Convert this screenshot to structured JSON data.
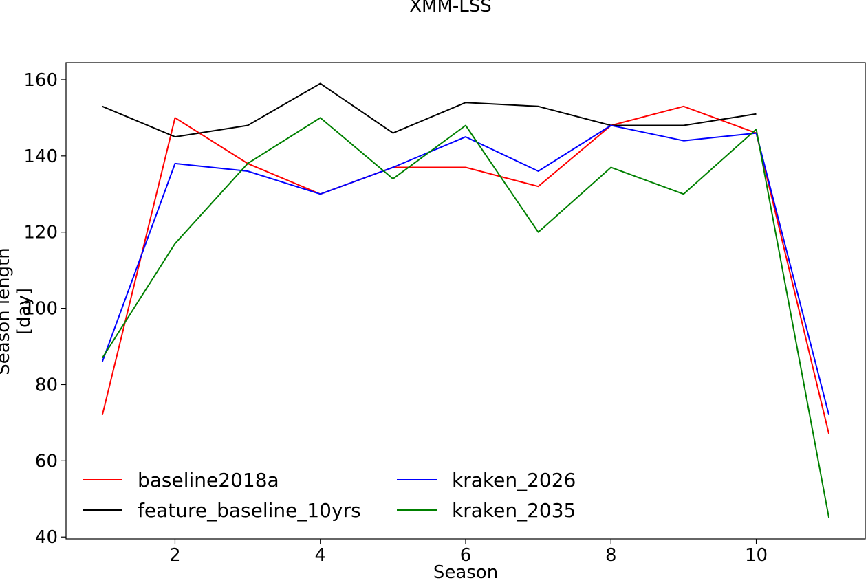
{
  "chart_data": {
    "type": "line",
    "title": "XMM-LSS",
    "xlabel": "Season",
    "ylabel": "Season length [day]",
    "xlim": [
      0.5,
      11.5
    ],
    "ylim": [
      39.5,
      164.5
    ],
    "xticks": [
      2,
      4,
      6,
      8,
      10
    ],
    "yticks": [
      40,
      60,
      80,
      100,
      120,
      140,
      160
    ],
    "grid": false,
    "legend_position": "lower-left",
    "series": [
      {
        "name": "baseline2018a",
        "color": "#ff0000",
        "x": [
          1,
          2,
          3,
          4,
          5,
          6,
          7,
          8,
          9,
          10,
          11
        ],
        "y": [
          72,
          150,
          138,
          130,
          137,
          137,
          132,
          148,
          153,
          146,
          67
        ]
      },
      {
        "name": "feature_baseline_10yrs",
        "color": "#000000",
        "x": [
          1,
          2,
          3,
          4,
          5,
          6,
          7,
          8,
          9,
          10
        ],
        "y": [
          153,
          145,
          148,
          159,
          146,
          154,
          153,
          148,
          148,
          151
        ]
      },
      {
        "name": "kraken_2026",
        "color": "#0000ff",
        "x": [
          1,
          2,
          3,
          4,
          5,
          6,
          7,
          8,
          9,
          10,
          11
        ],
        "y": [
          86,
          138,
          136,
          130,
          137,
          145,
          136,
          148,
          144,
          146,
          72
        ]
      },
      {
        "name": "kraken_2035",
        "color": "#008000",
        "x": [
          1,
          2,
          3,
          4,
          5,
          6,
          7,
          8,
          9,
          10,
          11
        ],
        "y": [
          87,
          117,
          138,
          150,
          134,
          148,
          120,
          137,
          130,
          147,
          45
        ]
      }
    ]
  }
}
